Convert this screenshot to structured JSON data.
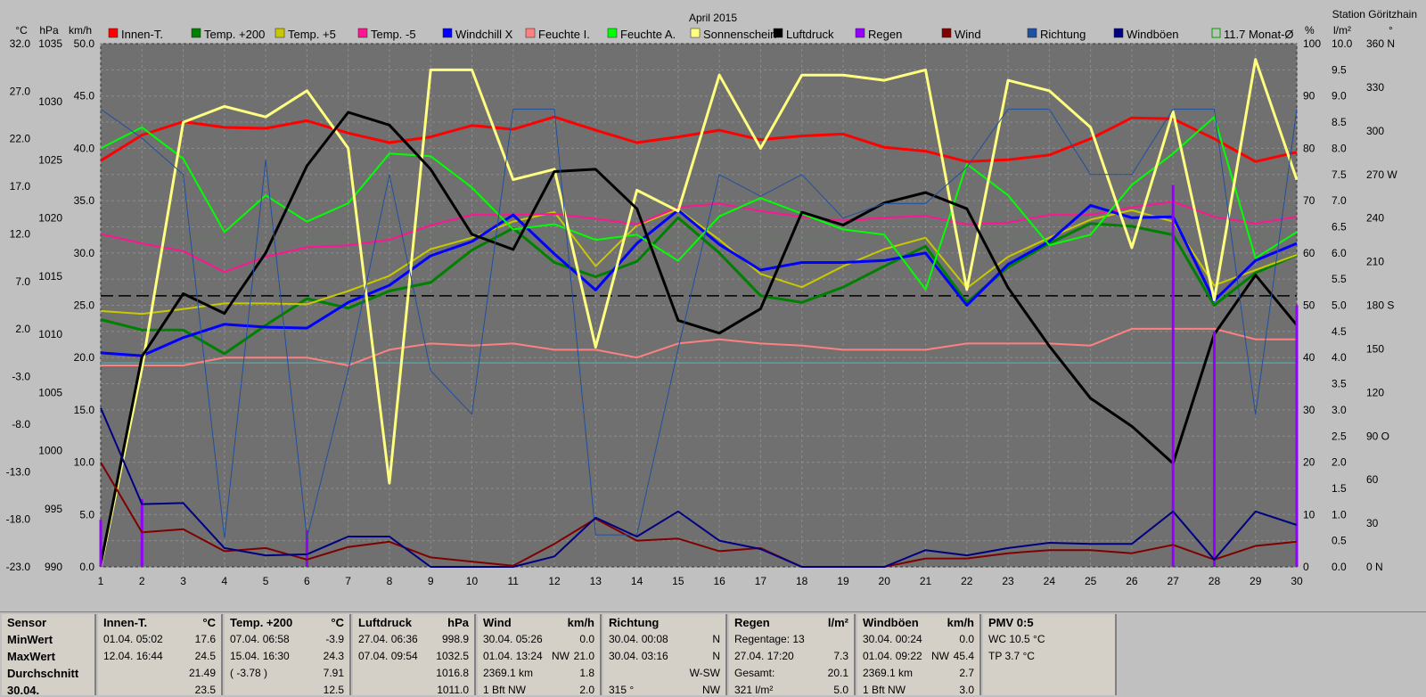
{
  "chart_data": {
    "type": "line",
    "title": "April 2015",
    "station": "Station Göritzhain",
    "x": [
      1,
      2,
      3,
      4,
      5,
      6,
      7,
      8,
      9,
      10,
      11,
      12,
      13,
      14,
      15,
      16,
      17,
      18,
      19,
      20,
      21,
      22,
      23,
      24,
      25,
      26,
      27,
      28,
      29,
      30
    ],
    "axes": {
      "temp": {
        "unit": "°C",
        "min": -23.0,
        "max": 32.0,
        "ticks": [
          "32.0",
          "27.0",
          "22.0",
          "17.0",
          "12.0",
          "7.0",
          "2.0",
          "-3.0",
          "-8.0",
          "-13.0",
          "-18.0",
          "-23.0"
        ]
      },
      "pressure": {
        "unit": "hPa",
        "min": 990,
        "max": 1035,
        "ticks": [
          "1035",
          "1030",
          "1025",
          "1020",
          "1015",
          "1010",
          "1005",
          "1000",
          "995",
          "990"
        ]
      },
      "wind": {
        "unit": "km/h",
        "min": 0,
        "max": 50,
        "ticks": [
          "50.0",
          "45.0",
          "40.0",
          "35.0",
          "30.0",
          "25.0",
          "20.0",
          "15.0",
          "10.0",
          "5.0",
          "0.0"
        ]
      },
      "humidity": {
        "unit": "%",
        "min": 0,
        "max": 100,
        "ticks": [
          "100",
          "90",
          "80",
          "70",
          "60",
          "50",
          "40",
          "30",
          "20",
          "10",
          "0"
        ]
      },
      "rain": {
        "unit": "l/m²",
        "min": 0,
        "max": 10,
        "ticks": [
          "10.0",
          "9.5",
          "9.0",
          "8.5",
          "8.0",
          "7.5",
          "7.0",
          "6.5",
          "6.0",
          "5.5",
          "5.0",
          "4.5",
          "4.0",
          "3.5",
          "3.0",
          "2.5",
          "2.0",
          "1.5",
          "1.0",
          "0.5",
          "0.0"
        ]
      },
      "direction": {
        "unit": "°",
        "min": 0,
        "max": 360,
        "ticks": [
          "360 N",
          "330",
          "300",
          "270 W",
          "240",
          "210",
          "180 S",
          "150",
          "120",
          "90 O",
          "60",
          "30",
          "0 N"
        ]
      }
    },
    "reference_lines": [
      {
        "name": "11.7 Monat-Ø",
        "axis": "temp",
        "value": 11.7,
        "color": "#00c000",
        "style": "dashed"
      },
      {
        "axis": "temp",
        "value": 5.5,
        "color": "#000000",
        "style": "dashed"
      },
      {
        "axis": "humidity",
        "value": 39,
        "color": "#40c0c0",
        "style": "solid"
      }
    ],
    "series": [
      {
        "name": "Innen-T.",
        "axis": "temp",
        "color": "#ff0000",
        "width": 3,
        "values": [
          19.7,
          22.4,
          23.8,
          23.2,
          23.1,
          23.9,
          22.6,
          21.6,
          22.2,
          23.4,
          23.0,
          24.3,
          22.9,
          21.6,
          22.2,
          22.9,
          21.9,
          22.3,
          22.5,
          21.1,
          20.7,
          19.6,
          19.8,
          20.3,
          22.0,
          24.2,
          24.1,
          22.0,
          19.6,
          20.6
        ]
      },
      {
        "name": "Temp. +200",
        "axis": "temp",
        "color": "#008000",
        "width": 3,
        "values": [
          3.0,
          1.9,
          1.9,
          -0.6,
          2.4,
          5.2,
          4.2,
          6.0,
          6.9,
          10.3,
          12.6,
          9.0,
          7.5,
          9.1,
          13.7,
          10.0,
          5.5,
          4.8,
          6.4,
          8.6,
          10.7,
          4.8,
          8.5,
          11.0,
          13.1,
          12.8,
          11.9,
          4.5,
          7.9,
          9.8
        ]
      },
      {
        "name": "Temp. +5",
        "axis": "temp",
        "color": "#c8c800",
        "width": 2,
        "values": [
          3.9,
          3.6,
          4.1,
          4.7,
          4.7,
          4.6,
          6.0,
          7.6,
          10.4,
          11.6,
          13.3,
          14.3,
          8.6,
          12.9,
          14.6,
          11.4,
          7.8,
          6.4,
          8.6,
          10.4,
          11.6,
          6.3,
          9.6,
          11.6,
          13.5,
          14.5,
          13.3,
          6.6,
          8.2,
          9.8
        ]
      },
      {
        "name": "Temp. -5",
        "axis": "temp",
        "color": "#ff1493",
        "width": 2,
        "values": [
          12.0,
          11.0,
          10.2,
          8.0,
          9.6,
          10.6,
          10.8,
          11.4,
          12.9,
          14.0,
          14.0,
          14.1,
          13.6,
          13.0,
          14.8,
          15.2,
          14.4,
          13.8,
          13.4,
          13.7,
          13.9,
          13.0,
          13.2,
          14.0,
          14.0,
          14.8,
          15.4,
          13.8,
          13.1,
          13.8
        ]
      },
      {
        "name": "Windchill X",
        "axis": "temp",
        "color": "#0000ff",
        "width": 3,
        "values": [
          -0.5,
          -0.8,
          1.1,
          2.5,
          2.2,
          2.1,
          4.8,
          6.6,
          9.7,
          11.2,
          14.0,
          9.9,
          6.1,
          11.0,
          14.5,
          10.9,
          8.2,
          9.0,
          9.0,
          9.2,
          10.0,
          4.5,
          8.8,
          11.2,
          15.0,
          13.7,
          13.8,
          5.0,
          9.2,
          11.0
        ]
      },
      {
        "name": "Feuchte I.",
        "axis": "humidity",
        "color": "#ff8080",
        "width": 2,
        "values": [
          38.5,
          38.5,
          38.5,
          40.0,
          40.0,
          40.0,
          38.5,
          41.5,
          42.7,
          42.3,
          42.7,
          41.5,
          41.5,
          40.0,
          42.7,
          43.5,
          42.7,
          42.3,
          41.5,
          41.5,
          41.5,
          42.7,
          42.7,
          42.7,
          42.3,
          45.5,
          45.5,
          45.5,
          43.5,
          43.5
        ]
      },
      {
        "name": "Feuchte A.",
        "axis": "humidity",
        "color": "#00ff00",
        "width": 2,
        "values": [
          80.0,
          84.0,
          78.0,
          64.0,
          71.0,
          66.0,
          69.5,
          79.0,
          78.5,
          72.5,
          64.5,
          65.5,
          62.5,
          63.5,
          58.5,
          67.0,
          70.5,
          67.5,
          64.5,
          63.5,
          53.0,
          77.0,
          71.0,
          61.5,
          63.5,
          73.0,
          79.0,
          86.0,
          59.0,
          64.0
        ]
      },
      {
        "name": "Sonnenschein",
        "axis": "rain",
        "color": "#ffff80",
        "width": 3,
        "values": [
          0.0,
          3.8,
          8.5,
          8.8,
          8.6,
          9.1,
          8.0,
          1.6,
          9.5,
          9.5,
          7.4,
          7.6,
          4.2,
          7.2,
          6.8,
          9.4,
          8.0,
          9.4,
          9.4,
          9.3,
          9.5,
          5.3,
          9.3,
          9.1,
          8.4,
          6.1,
          8.7,
          5.1,
          9.7,
          7.4
        ]
      },
      {
        "name": "Luftdruck",
        "axis": "pressure",
        "color": "#000000",
        "width": 3,
        "values": [
          990.2,
          1008.1,
          1013.5,
          1011.8,
          1017.0,
          1024.5,
          1029.1,
          1028.0,
          1024.2,
          1018.6,
          1017.3,
          1024.0,
          1024.2,
          1020.8,
          1011.2,
          1010.1,
          1012.2,
          1020.5,
          1019.4,
          1021.3,
          1022.2,
          1020.8,
          1014.0,
          1009.0,
          1004.5,
          1002.1,
          998.9,
          1010.0,
          1015.1,
          1010.8
        ]
      },
      {
        "name": "Regen",
        "axis": "rain",
        "color": "#9400ff",
        "width": 3,
        "bars": true,
        "values": [
          0.9,
          1.3,
          0.0,
          0.0,
          0.0,
          0.7,
          0.0,
          0.0,
          0.0,
          0.0,
          0.0,
          0.0,
          0.0,
          0.0,
          0.0,
          0.0,
          0.0,
          0.0,
          0.0,
          0.0,
          0.0,
          0.0,
          0.0,
          0.0,
          0.0,
          0.0,
          7.3,
          4.5,
          0.0,
          5.0
        ]
      },
      {
        "name": "Wind",
        "axis": "wind",
        "color": "#800000",
        "width": 2,
        "values": [
          10.0,
          3.3,
          3.6,
          1.5,
          1.8,
          0.7,
          1.9,
          2.4,
          0.9,
          0.5,
          0.1,
          2.2,
          4.6,
          2.5,
          2.7,
          1.5,
          1.8,
          0.0,
          0.0,
          0.0,
          0.8,
          0.8,
          1.3,
          1.6,
          1.6,
          1.3,
          2.1,
          0.7,
          2.0,
          2.4
        ]
      },
      {
        "name": "Richtung",
        "axis": "direction",
        "color": "#2050a0",
        "width": 1,
        "values": [
          315,
          295,
          270,
          20,
          280,
          20,
          135,
          270,
          135,
          105,
          315,
          315,
          22,
          22,
          150,
          270,
          255,
          270,
          240,
          250,
          250,
          275,
          315,
          315,
          270,
          270,
          315,
          315,
          105,
          315
        ]
      },
      {
        "name": "Windböen",
        "axis": "wind",
        "color": "#000080",
        "width": 2,
        "values": [
          15.2,
          6.0,
          6.1,
          1.8,
          1.1,
          1.2,
          2.9,
          2.9,
          0.0,
          0.0,
          0.0,
          1.0,
          4.7,
          2.9,
          5.3,
          2.5,
          1.7,
          0.0,
          0.0,
          0.0,
          1.6,
          1.1,
          1.8,
          2.3,
          2.2,
          2.2,
          5.3,
          0.7,
          5.3,
          4.0
        ]
      }
    ]
  },
  "legend_month_avg": "11.7 Monat-Ø",
  "panels": [
    {
      "key": "sensor",
      "header": "Sensor",
      "rows": [
        "MinWert",
        "MaxWert",
        "Durchschnitt",
        "30.04."
      ]
    },
    {
      "key": "innen",
      "header": "Innen-T.",
      "unit": "°C",
      "rows": [
        {
          "a": "01.04. 05:02",
          "b": "",
          "c": "17.6"
        },
        {
          "a": "12.04. 16:44",
          "b": "",
          "c": "24.5"
        },
        {
          "a": "",
          "b": "",
          "c": "21.49"
        },
        {
          "a": "",
          "b": "",
          "c": "23.5"
        }
      ]
    },
    {
      "key": "temp",
      "header": "Temp. +200",
      "unit": "°C",
      "rows": [
        {
          "a": "07.04. 06:58",
          "b": "",
          "c": "-3.9"
        },
        {
          "a": "15.04. 16:30",
          "b": "",
          "c": "24.3"
        },
        {
          "a": "( -3.78 )",
          "b": "",
          "c": "7.91"
        },
        {
          "a": "",
          "b": "",
          "c": "12.5"
        }
      ]
    },
    {
      "key": "druck",
      "header": "Luftdruck",
      "unit": "hPa",
      "rows": [
        {
          "a": "27.04. 06:36",
          "b": "",
          "c": "998.9"
        },
        {
          "a": "07.04. 09:54",
          "b": "",
          "c": "1032.5"
        },
        {
          "a": "",
          "b": "",
          "c": "1016.8"
        },
        {
          "a": "",
          "b": "",
          "c": "1011.0"
        }
      ]
    },
    {
      "key": "wind",
      "header": "Wind",
      "unit": "km/h",
      "rows": [
        {
          "a": "30.04. 05:26",
          "b": "",
          "c": "0.0"
        },
        {
          "a": "01.04. 13:24",
          "b": "NW",
          "c": "21.0"
        },
        {
          "a": "2369.1 km",
          "b": "",
          "c": "1.8"
        },
        {
          "a": "1 Bft NW",
          "b": "",
          "c": "2.0"
        }
      ]
    },
    {
      "key": "richtung",
      "header": "Richtung",
      "unit": "",
      "rows": [
        {
          "a": "30.04. 00:08",
          "b": "",
          "c": "N"
        },
        {
          "a": "30.04. 03:16",
          "b": "",
          "c": "N"
        },
        {
          "a": "",
          "b": "",
          "c": "W-SW"
        },
        {
          "a": "315 °",
          "b": "",
          "c": "NW"
        }
      ]
    },
    {
      "key": "regen",
      "header": "Regen",
      "unit": "l/m²",
      "rows": [
        {
          "a": "Regentage: 13",
          "b": "",
          "c": ""
        },
        {
          "a": "27.04. 17:20",
          "b": "",
          "c": "7.3"
        },
        {
          "a": "Gesamt:",
          "b": "",
          "c": "20.1"
        },
        {
          "a": "321 l/m²",
          "b": "",
          "c": "5.0"
        }
      ]
    },
    {
      "key": "boeen",
      "header": "Windböen",
      "unit": "km/h",
      "rows": [
        {
          "a": "30.04. 00:24",
          "b": "",
          "c": "0.0"
        },
        {
          "a": "01.04. 09:22",
          "b": "NW",
          "c": "45.4"
        },
        {
          "a": "2369.1 km",
          "b": "",
          "c": "2.7"
        },
        {
          "a": "1 Bft NW",
          "b": "",
          "c": "3.0"
        }
      ]
    },
    {
      "key": "pmv",
      "header": "PMV 0:5",
      "unit": "",
      "rows": [
        {
          "a": "WC 10.5 °C",
          "b": "",
          "c": ""
        },
        {
          "a": "TP 3.7 °C",
          "b": "",
          "c": ""
        },
        {
          "a": "",
          "b": "",
          "c": ""
        },
        {
          "a": "",
          "b": "",
          "c": ""
        }
      ]
    }
  ]
}
